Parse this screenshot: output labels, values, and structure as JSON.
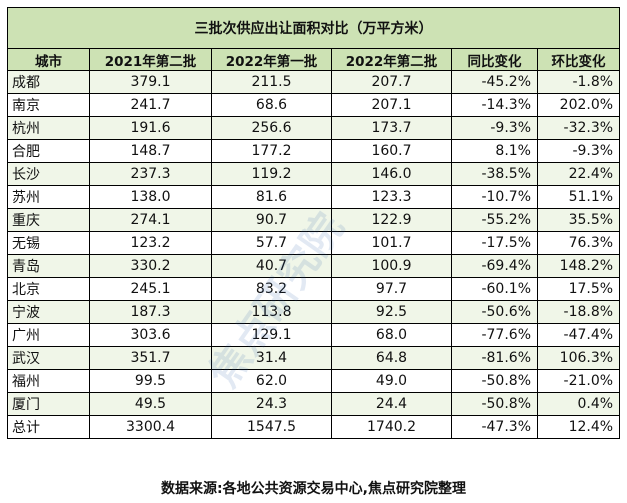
{
  "chart_data": {
    "type": "table",
    "title": "三批次供应出让面积对比（万平方米）",
    "columns": [
      "城市",
      "2021年第二批",
      "2022年第一批",
      "2022年第二批",
      "同比变化",
      "环比变化"
    ],
    "rows": [
      [
        "成都",
        "379.1",
        "211.5",
        "207.7",
        "-45.2%",
        "-1.8%"
      ],
      [
        "南京",
        "241.7",
        "68.6",
        "207.1",
        "-14.3%",
        "202.0%"
      ],
      [
        "杭州",
        "191.6",
        "256.6",
        "173.7",
        "-9.3%",
        "-32.3%"
      ],
      [
        "合肥",
        "148.7",
        "177.2",
        "160.7",
        "8.1%",
        "-9.3%"
      ],
      [
        "长沙",
        "237.3",
        "119.2",
        "146.0",
        "-38.5%",
        "22.4%"
      ],
      [
        "苏州",
        "138.0",
        "81.6",
        "123.3",
        "-10.7%",
        "51.1%"
      ],
      [
        "重庆",
        "274.1",
        "90.7",
        "122.9",
        "-55.2%",
        "35.5%"
      ],
      [
        "无锡",
        "123.2",
        "57.7",
        "101.7",
        "-17.5%",
        "76.3%"
      ],
      [
        "青岛",
        "330.2",
        "40.7",
        "100.9",
        "-69.4%",
        "148.2%"
      ],
      [
        "北京",
        "245.1",
        "83.2",
        "97.7",
        "-60.1%",
        "17.5%"
      ],
      [
        "宁波",
        "187.3",
        "113.8",
        "92.5",
        "-50.6%",
        "-18.8%"
      ],
      [
        "广州",
        "303.6",
        "129.1",
        "68.0",
        "-77.6%",
        "-47.4%"
      ],
      [
        "武汉",
        "351.7",
        "31.4",
        "64.8",
        "-81.6%",
        "106.3%"
      ],
      [
        "福州",
        "99.5",
        "62.0",
        "49.0",
        "-50.8%",
        "-21.0%"
      ],
      [
        "厦门",
        "49.5",
        "24.3",
        "24.4",
        "-50.8%",
        "0.4%"
      ],
      [
        "总计",
        "3300.4",
        "1547.5",
        "1740.2",
        "-47.3%",
        "12.4%"
      ]
    ],
    "source": "数据来源:各地公共资源交易中心,焦点研究院整理",
    "watermark": "焦点研究院"
  },
  "colors": {
    "header_bg": "#cde2b4",
    "stripe_bg": "#f0f6e8",
    "border": "#000000"
  }
}
